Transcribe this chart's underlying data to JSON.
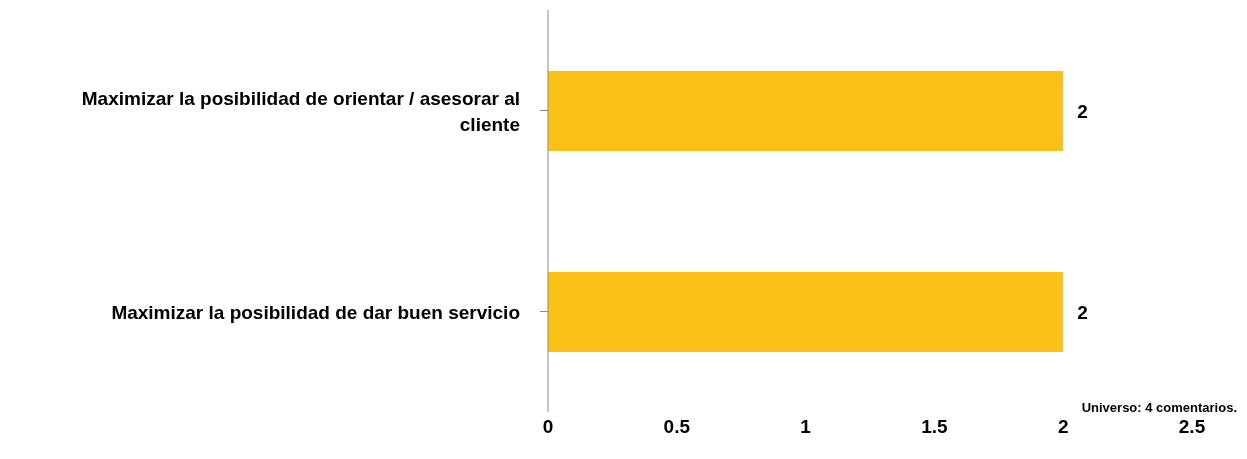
{
  "chart_data": {
    "type": "bar",
    "orientation": "horizontal",
    "categories": [
      "Maximizar la posibilidad de orientar / asesorar al cliente",
      "Maximizar la posibilidad de dar buen servicio"
    ],
    "values": [
      2,
      2
    ],
    "color": "#fcc118",
    "xlim": [
      0,
      2.5
    ],
    "xticks": [
      0,
      0.5,
      1,
      1.5,
      2,
      2.5
    ],
    "data_labels": true,
    "annotations": [
      "Universo: 4 comentarios."
    ]
  }
}
